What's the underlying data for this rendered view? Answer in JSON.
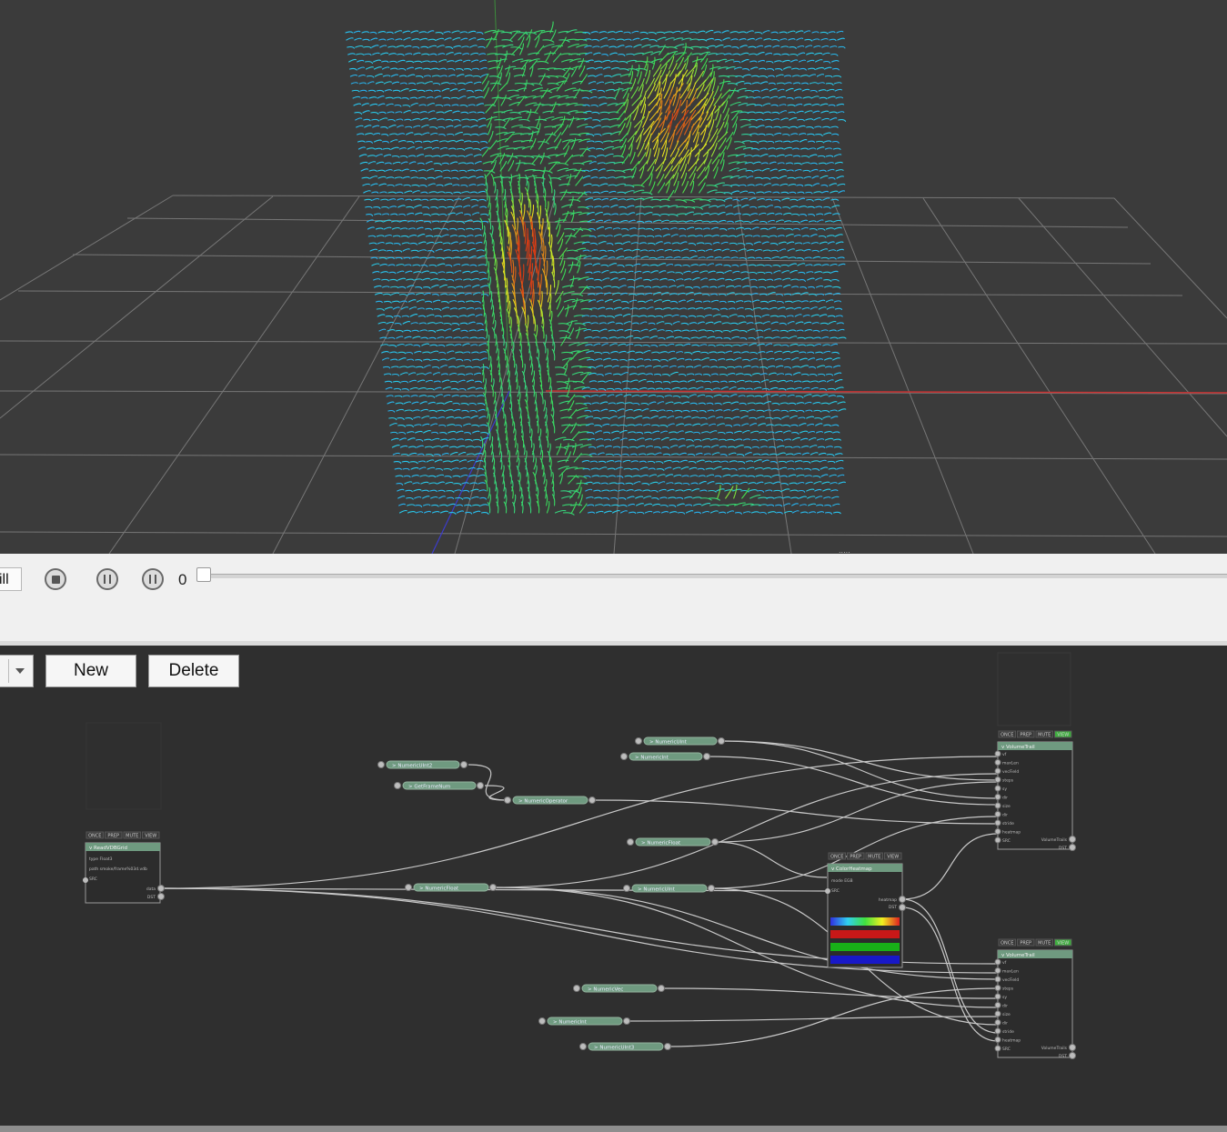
{
  "timeline": {
    "fill_label": "ill",
    "frame_value": "0"
  },
  "node_editor": {
    "new_label": "New",
    "delete_label": "Delete",
    "node_buttons": [
      "ONCE",
      "PREP",
      "MUTE",
      "VIEW"
    ],
    "nodes": {
      "read_vdb": {
        "title": "ReadVDBGrid",
        "params": [
          "type  Float3",
          "path  smoke/frame%03d.vdb",
          "SRC"
        ],
        "outputs": [
          "data",
          "DST"
        ]
      },
      "numeric_uint_a": {
        "title": "NumericUInt"
      },
      "numeric_int": {
        "title": "NumericInt"
      },
      "numeric_uint2": {
        "title": "NumericUInt2"
      },
      "get_framenum": {
        "title": "GetFrameNum"
      },
      "numeric_operator": {
        "title": "NumericOperator"
      },
      "numeric_float": {
        "title": "NumericFloat"
      },
      "numeric_float2": {
        "title": "NumericFloat"
      },
      "numeric_uint_b": {
        "title": "NumericUInt"
      },
      "numeric_vec": {
        "title": "NumericVec"
      },
      "numeric_int_b": {
        "title": "NumericInt"
      },
      "numeric_uint3": {
        "title": "NumericUInt3"
      },
      "color_heatmap": {
        "title": "ColorHeatmap",
        "params": [
          "mode  EGB",
          "SRC"
        ],
        "outputs": [
          "heatmap",
          "DST"
        ]
      },
      "volume_trails_1": {
        "title": "VolumeTrail",
        "inputs": [
          "vf",
          "maxLen",
          "vecField",
          "steps",
          "sy",
          "dir",
          "size",
          "dir",
          "stride",
          "heatmap",
          "SRC"
        ],
        "outputs": [
          "VolumeTrails",
          "DST"
        ]
      },
      "volume_trails_2": {
        "title": "VolumeTrail",
        "inputs": [
          "vf",
          "maxLen",
          "vecField",
          "steps",
          "sy",
          "dir",
          "size",
          "dir",
          "stride",
          "heatmap",
          "SRC"
        ],
        "outputs": [
          "VolumeTrails",
          "DST"
        ]
      }
    }
  },
  "colors": {
    "viewport_bg": "#3b3b3b",
    "grid": "#8a8a8a",
    "axis_x": "#c83232",
    "axis_y": "#3c8c3c",
    "axis_z": "#3c3ccc",
    "node_header": "#6f9a80",
    "view_active": "#3fae3f"
  },
  "icons": [
    "stop-icon",
    "step-back-icon",
    "step-forward-icon",
    "dropdown-arrow-icon"
  ]
}
